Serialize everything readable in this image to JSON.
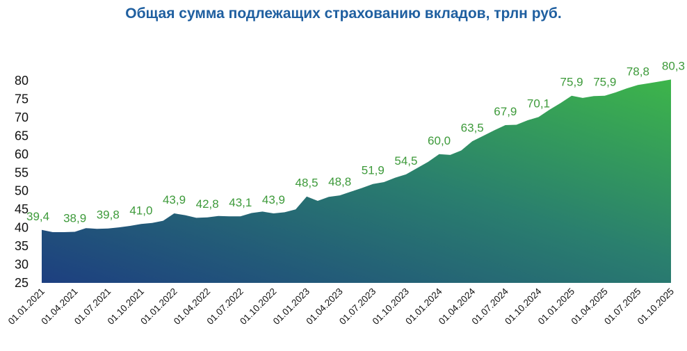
{
  "chart_data": {
    "type": "area",
    "title": "Общая сумма подлежащих страхованию вкладов, трлн руб.",
    "xlabel": "",
    "ylabel": "",
    "ylim": [
      25,
      80
    ],
    "yticks": [
      "25",
      "30",
      "35",
      "40",
      "45",
      "50",
      "55",
      "60",
      "65",
      "70",
      "75",
      "80"
    ],
    "grid": false,
    "legend": "none",
    "x_tick_labels": [
      "01.01.2021",
      "01.04.2021",
      "01.07.2021",
      "01.10.2021",
      "01.01.2022",
      "01.04.2022",
      "01.07.2022",
      "01.10.2022",
      "01.01.2023",
      "01.04.2023",
      "01.07.2023",
      "01.10.2023",
      "01.01.2024",
      "01.04.2024",
      "01.07.2024",
      "01.10.2024",
      "01.01.2025",
      "01.04.2025",
      "01.07.2025",
      "01.10.2025"
    ],
    "x": [
      "2021-01-01",
      "2021-02-01",
      "2021-03-01",
      "2021-04-01",
      "2021-05-01",
      "2021-06-01",
      "2021-07-01",
      "2021-08-01",
      "2021-09-01",
      "2021-10-01",
      "2021-11-01",
      "2021-12-01",
      "2022-01-01",
      "2022-02-01",
      "2022-03-01",
      "2022-04-01",
      "2022-05-01",
      "2022-06-01",
      "2022-07-01",
      "2022-08-01",
      "2022-09-01",
      "2022-10-01",
      "2022-11-01",
      "2022-12-01",
      "2023-01-01",
      "2023-02-01",
      "2023-03-01",
      "2023-04-01",
      "2023-05-01",
      "2023-06-01",
      "2023-07-01",
      "2023-08-01",
      "2023-09-01",
      "2023-10-01",
      "2023-11-01",
      "2023-12-01",
      "2024-01-01",
      "2024-02-01",
      "2024-03-01",
      "2024-04-01",
      "2024-05-01",
      "2024-06-01",
      "2024-07-01",
      "2024-08-01",
      "2024-09-01",
      "2024-10-01",
      "2024-11-01",
      "2024-12-01",
      "2025-01-01",
      "2025-02-01",
      "2025-03-01",
      "2025-04-01",
      "2025-05-01",
      "2025-06-01",
      "2025-07-01",
      "2025-08-01",
      "2025-09-01",
      "2025-10-01"
    ],
    "values": [
      39.4,
      38.8,
      38.8,
      38.9,
      39.9,
      39.7,
      39.8,
      40.1,
      40.5,
      41.0,
      41.3,
      41.9,
      43.9,
      43.4,
      42.7,
      42.8,
      43.2,
      43.1,
      43.1,
      44.0,
      44.4,
      43.9,
      44.2,
      45.0,
      48.5,
      47.3,
      48.4,
      48.8,
      49.8,
      50.8,
      51.9,
      52.4,
      53.6,
      54.5,
      56.2,
      57.9,
      60.0,
      59.8,
      61.0,
      63.5,
      65.0,
      66.5,
      67.9,
      68.0,
      69.2,
      70.1,
      72.1,
      73.9,
      75.9,
      75.3,
      75.8,
      75.9,
      76.8,
      77.9,
      78.8,
      79.3,
      79.8,
      80.3
    ],
    "data_labels": [
      {
        "x": "2021-01-01",
        "text": "39,4"
      },
      {
        "x": "2021-04-01",
        "text": "38,9"
      },
      {
        "x": "2021-07-01",
        "text": "39,8"
      },
      {
        "x": "2021-10-01",
        "text": "41,0"
      },
      {
        "x": "2022-01-01",
        "text": "43,9"
      },
      {
        "x": "2022-04-01",
        "text": "42,8"
      },
      {
        "x": "2022-07-01",
        "text": "43,1"
      },
      {
        "x": "2022-10-01",
        "text": "43,9"
      },
      {
        "x": "2023-01-01",
        "text": "48,5"
      },
      {
        "x": "2023-04-01",
        "text": "48,8"
      },
      {
        "x": "2023-07-01",
        "text": "51,9"
      },
      {
        "x": "2023-10-01",
        "text": "54,5"
      },
      {
        "x": "2024-01-01",
        "text": "60,0"
      },
      {
        "x": "2024-04-01",
        "text": "63,5"
      },
      {
        "x": "2024-07-01",
        "text": "67,9"
      },
      {
        "x": "2024-10-01",
        "text": "70,1"
      },
      {
        "x": "2025-01-01",
        "text": "75,9"
      },
      {
        "x": "2025-04-01",
        "text": "75,9"
      },
      {
        "x": "2025-07-01",
        "text": "78,8"
      },
      {
        "x": "2025-10-01",
        "text": "80,3"
      }
    ],
    "colors": {
      "gradient_start": "#1d3f80",
      "gradient_mid": "#2a7f6e",
      "gradient_end": "#3db54a",
      "labels": "#3d9a3a",
      "title": "#1f5fa0"
    }
  }
}
